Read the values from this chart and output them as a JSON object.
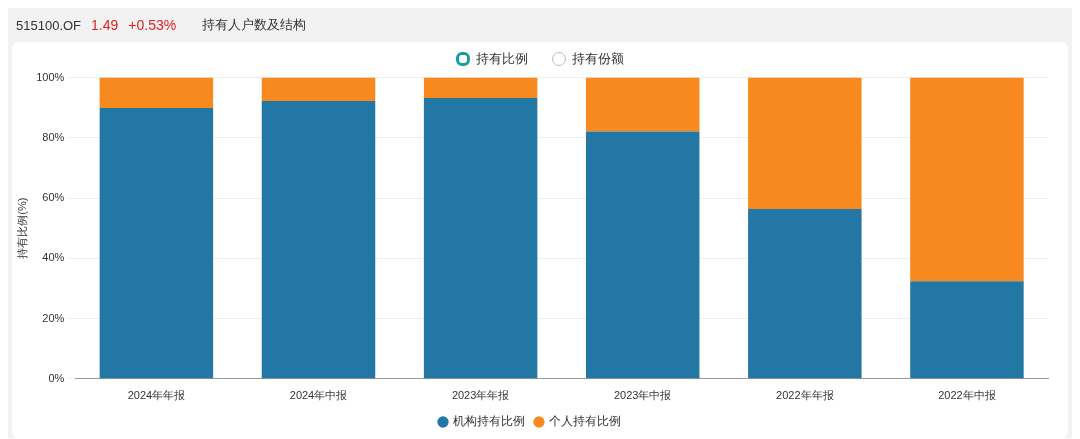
{
  "chart_data": {
    "type": "bar",
    "title": "持有人户数及结构",
    "annotations": [
      "515100.OF",
      "1.49",
      "+0.53%",
      "持有比例",
      "持有份额"
    ],
    "categories": [
      "2024年年报",
      "2024年中报",
      "2023年年报",
      "2023年中报",
      "2022年年报",
      "2022年中报"
    ],
    "stacked": true,
    "ylabel": "持有比例(%)",
    "ylim": [
      0,
      100
    ],
    "yticks": [
      {
        "value": 0,
        "label": "0%"
      },
      {
        "value": 20,
        "label": "20%"
      },
      {
        "value": 40,
        "label": "40%"
      },
      {
        "value": 60,
        "label": "60%"
      },
      {
        "value": 80,
        "label": "80%"
      },
      {
        "value": 100,
        "label": "100%"
      }
    ],
    "grid": "y",
    "legend": "bottom",
    "series": [
      {
        "name": "机构持有比例",
        "color": "#2377a4",
        "values": [
          89.9,
          92.2,
          93.2,
          82.1,
          56.4,
          32.4
        ]
      },
      {
        "name": "个人持有比例",
        "color": "#f7891e",
        "values": [
          10.1,
          7.8,
          6.8,
          17.9,
          43.6,
          67.6
        ]
      }
    ]
  }
}
